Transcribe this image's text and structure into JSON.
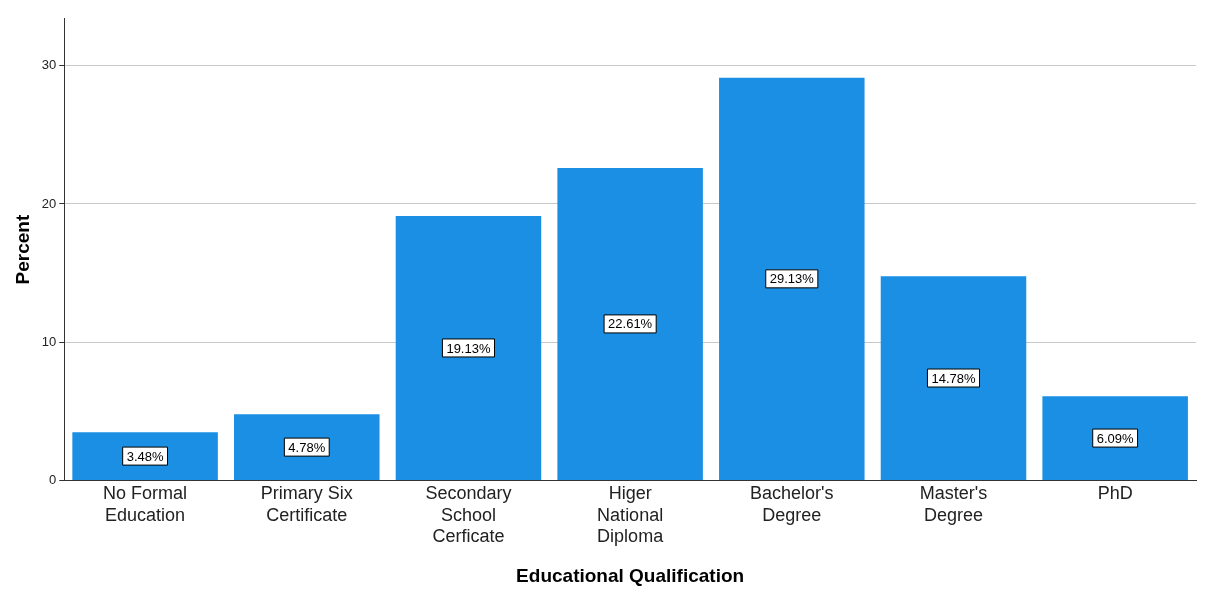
{
  "chart_data": {
    "type": "bar",
    "xlabel": "Educational Qualification",
    "ylabel": "Percent",
    "categories": [
      "No Formal Education",
      "Primary Six Certificate",
      "Secondary School Cerficate",
      "Higer National Diploma",
      "Bachelor's Degree",
      "Master's Degree",
      "PhD"
    ],
    "values": [
      3.48,
      4.78,
      19.13,
      22.61,
      29.13,
      14.78,
      6.09
    ],
    "value_labels": [
      "3.48%",
      "4.78%",
      "19.13%",
      "22.61%",
      "29.13%",
      "14.78%",
      "6.09%"
    ],
    "color": "#1a8fe3",
    "ylim": [
      0,
      33.4
    ],
    "yticks": [
      0,
      10,
      20,
      30
    ],
    "grid": "y",
    "legend": false
  }
}
